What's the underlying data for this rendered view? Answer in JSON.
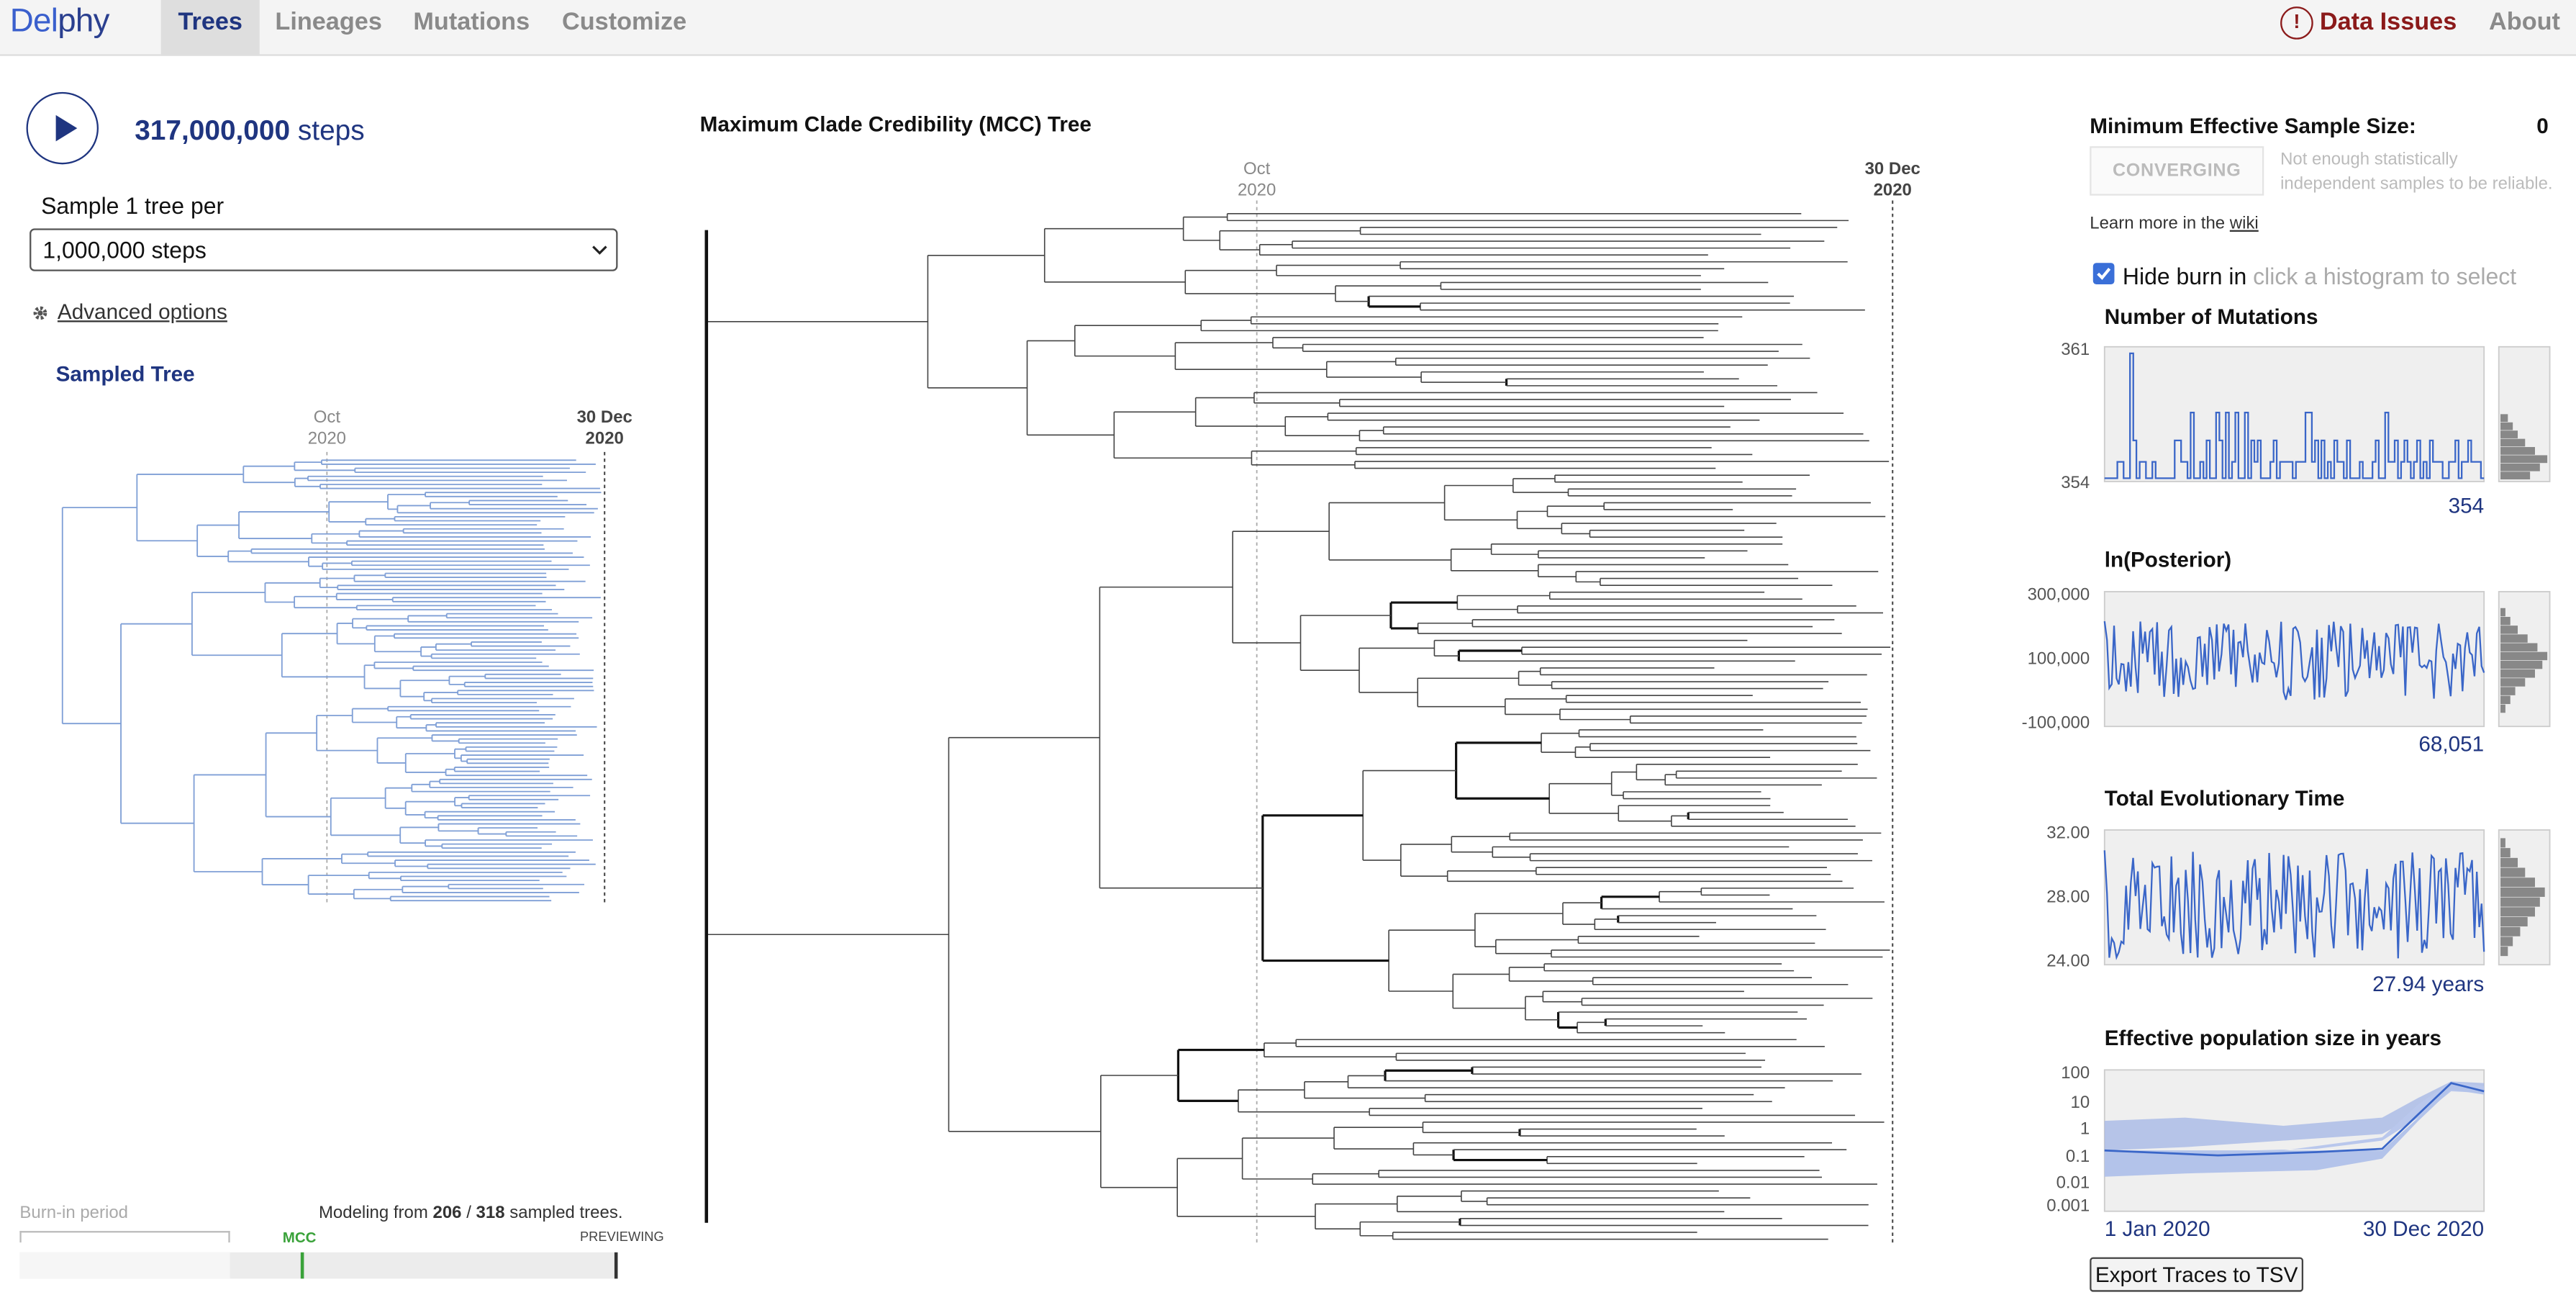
{
  "nav": {
    "logo_a": "Del",
    "logo_b": "phy",
    "tabs": [
      "Trees",
      "Lineages",
      "Mutations",
      "Customize"
    ],
    "issues": "Data Issues",
    "issue_icon": "!",
    "about": "About"
  },
  "left": {
    "steps_num": "317,000,000",
    "steps_unit": "steps",
    "sample_label": "Sample 1 tree per",
    "sample_value": "1,000,000 steps",
    "advanced": "Advanced options",
    "sampled_title": "Sampled Tree",
    "oct": "Oct",
    "year": "2020",
    "dec": "30 Dec"
  },
  "burn": {
    "label": "Burn-in period",
    "modeling_a": "Modeling from ",
    "n_used": "206",
    "sep": " / ",
    "n_total": "318",
    "modeling_b": " sampled trees.",
    "mcc": "MCC",
    "previewing": "PREVIEWING"
  },
  "mcc": {
    "title": "Maximum Clade Credibility (MCC) Tree",
    "oct": "Oct",
    "year": "2020",
    "dec": "30 Dec"
  },
  "right": {
    "min_ess_label": "Minimum Effective Sample Size:",
    "min_ess_value": "0",
    "converging": "CONVERGING",
    "notenough": [
      "Not enough statistically",
      "independent samples to be reliable."
    ],
    "learn": "Learn more in the ",
    "wiki": "wiki",
    "hide_burn": "Hide burn in",
    "hide_hint": "click a histogram to select"
  },
  "chart_data": [
    {
      "type": "line",
      "title": "Number of Mutations",
      "ylim": [
        354,
        361
      ],
      "yticks": [
        "361",
        "354"
      ],
      "current": "354",
      "color": "#3a66c8"
    },
    {
      "type": "line",
      "title": "ln(Posterior)",
      "ylim": [
        -100000,
        300000
      ],
      "yticks": [
        "300,000",
        "100,000",
        "-100,000"
      ],
      "current": "68,051",
      "color": "#3a66c8"
    },
    {
      "type": "line",
      "title": "Total Evolutionary Time",
      "ylim": [
        24,
        32
      ],
      "yticks": [
        "32.00",
        "28.00",
        "24.00"
      ],
      "current": "27.94 years",
      "color": "#3a66c8"
    },
    {
      "type": "area",
      "title": "Effective population size in years",
      "yscale": "log",
      "yticks": [
        "100",
        "10",
        "1",
        "0.1",
        "0.01",
        "0.001"
      ],
      "xticks": [
        "1 Jan 2020",
        "30 Dec 2020"
      ],
      "color": "#3a66c8"
    }
  ],
  "export_label": "Export Traces to TSV"
}
